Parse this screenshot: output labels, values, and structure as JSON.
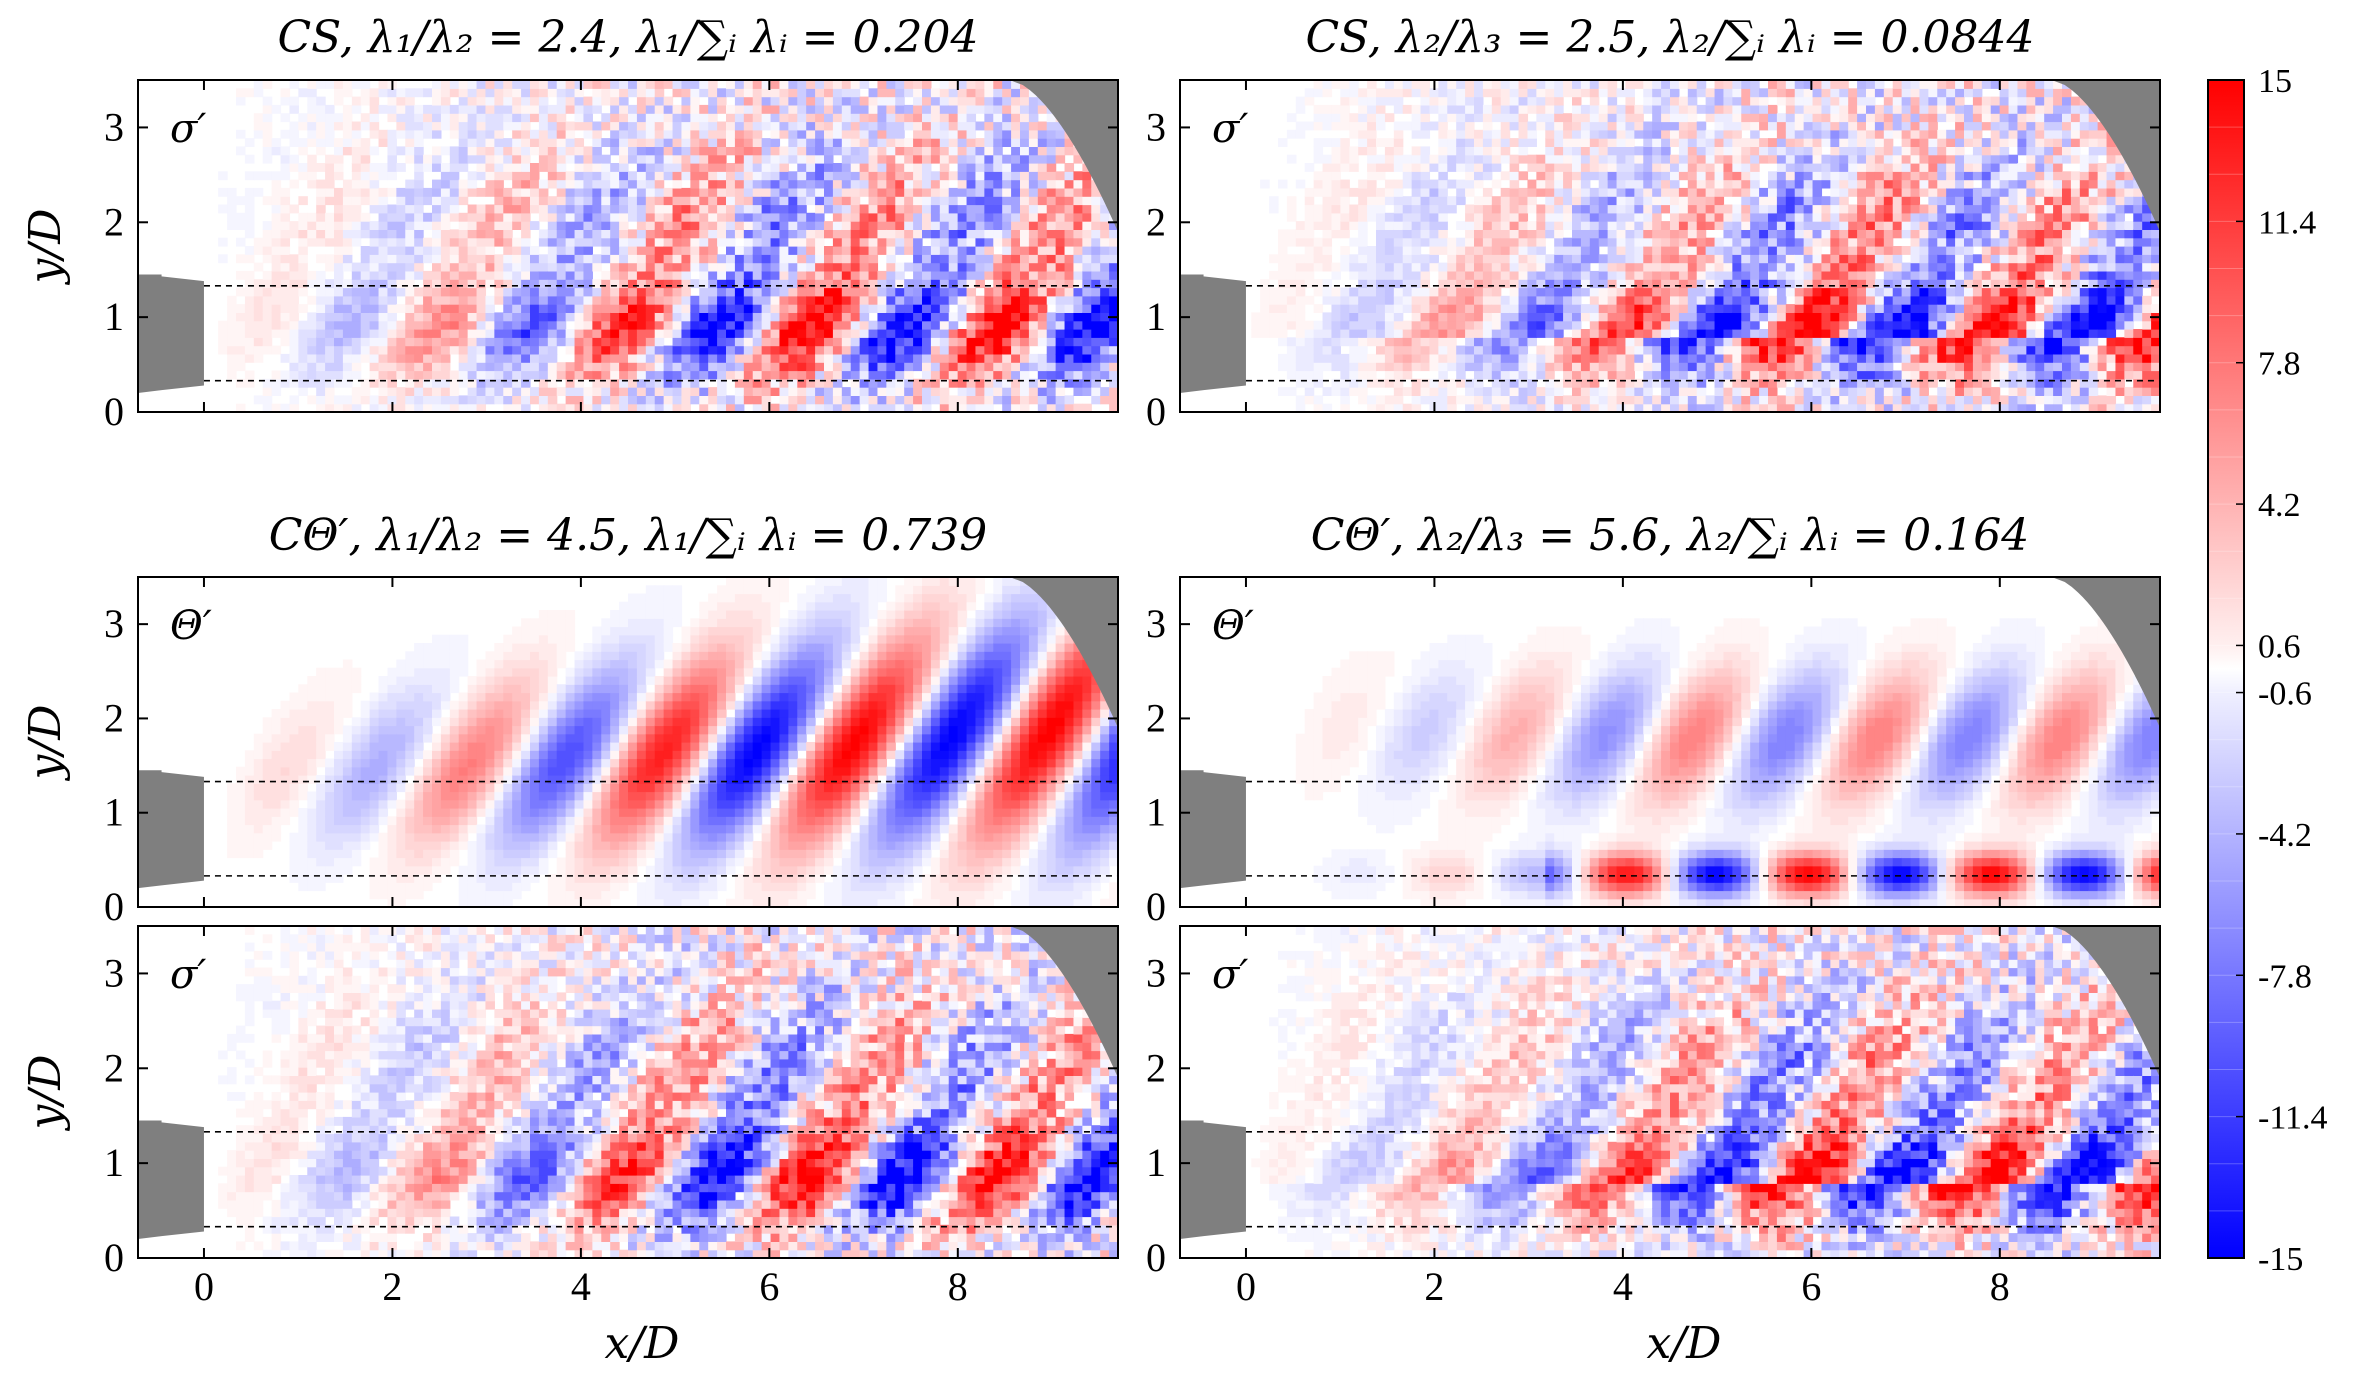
{
  "chart_data": {
    "type": "heatmap",
    "figure": "CS and CΘ′ mode fields (σ′ and Θ′) over a nozzle wake",
    "xlabel": "x/D",
    "ylabel": "y/D",
    "xlim": [
      -0.7,
      9.7
    ],
    "ylim": [
      0,
      3.5
    ],
    "xticks": [
      "0",
      "2",
      "4",
      "6",
      "8"
    ],
    "yticks": [
      "0",
      "1",
      "2",
      "3"
    ],
    "xtick_values": [
      0,
      2,
      4,
      6,
      8
    ],
    "ytick_values": [
      0,
      1,
      2,
      3
    ],
    "dashed_lines_y": [
      0.33,
      1.33
    ],
    "colorbar": {
      "min": -15,
      "max": 15,
      "ticks": [
        "15",
        "11.4",
        "7.8",
        "4.2",
        "0.6",
        "-0.6",
        "-4.2",
        "-7.8",
        "-11.4",
        "-15"
      ],
      "tick_values": [
        15,
        11.4,
        7.8,
        4.2,
        0.6,
        -0.6,
        -4.2,
        -7.8,
        -11.4,
        -15
      ],
      "colors": {
        "negative": "#0000ff",
        "zero": "#ffffff",
        "positive": "#ff0000"
      },
      "levels": 25
    },
    "panels": [
      {
        "id": "cs-mode1-sigma",
        "title": "CS, λ₁/λ₂ = 2.4, λ₁/∑ᵢ λᵢ = 0.204",
        "field_label": "σ′",
        "mode": 1,
        "variable": "sigma",
        "noisy": true
      },
      {
        "id": "cs-mode2-sigma",
        "title": "CS, λ₂/λ₃ = 2.5, λ₂/∑ᵢ λᵢ = 0.0844",
        "field_label": "σ′",
        "mode": 2,
        "variable": "sigma",
        "noisy": true
      },
      {
        "id": "ctheta-mode1-theta",
        "title": "CΘ′, λ₁/λ₂ = 4.5, λ₁/∑ᵢ λᵢ = 0.739",
        "field_label": "Θ′",
        "mode": 1,
        "variable": "theta",
        "noisy": false
      },
      {
        "id": "ctheta-mode2-theta",
        "title": "CΘ′, λ₂/λ₃ = 5.6, λ₂/∑ᵢ λᵢ = 0.164",
        "field_label": "Θ′",
        "mode": 2,
        "variable": "theta",
        "noisy": false
      },
      {
        "id": "ctheta-mode1-sigma",
        "title": "",
        "field_label": "σ′",
        "mode": 1,
        "variable": "sigma",
        "noisy": true
      },
      {
        "id": "ctheta-mode2-sigma",
        "title": "",
        "field_label": "σ′",
        "mode": 2,
        "variable": "sigma",
        "noisy": true
      }
    ]
  }
}
